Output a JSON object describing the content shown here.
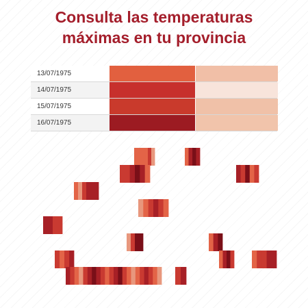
{
  "title": {
    "line1": "Consulta las temperaturas",
    "line2": "máximas en tu provincia"
  },
  "rows": [
    {
      "date": "13/07/1975",
      "color1": "#e2603f",
      "color2": "#f1bfa7"
    },
    {
      "date": "14/07/1975",
      "color1": "#c7302c",
      "color2": "#f8e4db"
    },
    {
      "date": "15/07/1975",
      "color1": "#c93a2c",
      "color2": "#f0c1a8"
    },
    {
      "date": "16/07/1975",
      "color1": "#9c1b22",
      "color2": "#f1c4ab"
    }
  ],
  "map_palette": [
    "#e8977d",
    "#e36447",
    "#c93a31",
    "#a72026",
    "#7a0f18"
  ]
}
